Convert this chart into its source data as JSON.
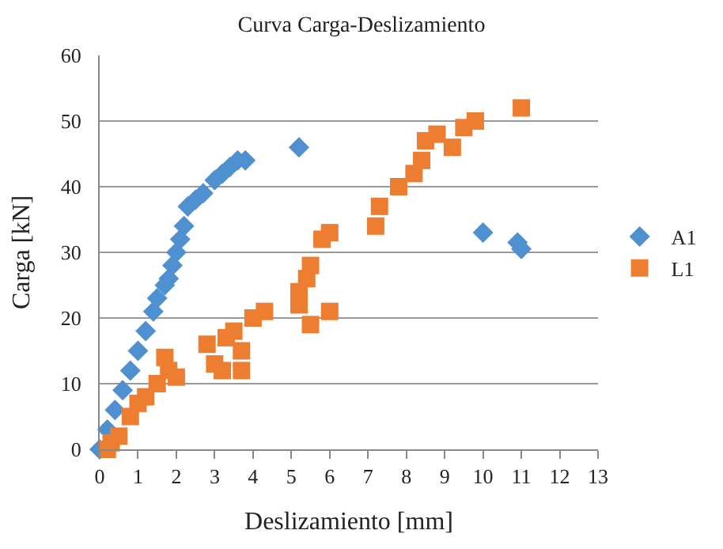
{
  "chart_data": {
    "type": "scatter",
    "title": "Curva Carga-Deslizamiento",
    "xlabel": "Deslizamiento [mm]",
    "ylabel": "Carga [kN]",
    "xlim": [
      0,
      13
    ],
    "xticks": [
      0,
      1,
      2,
      3,
      4,
      5,
      6,
      7,
      8,
      9,
      10,
      11,
      12,
      13
    ],
    "ylim": [
      0,
      60
    ],
    "yticks": [
      0,
      10,
      20,
      30,
      40,
      50,
      60
    ],
    "grid": "y",
    "legend": "right",
    "series": [
      {
        "name": "A1",
        "color": "#4f90d0",
        "marker": "diamond",
        "x": [
          0,
          0.2,
          0.4,
          0.6,
          0.8,
          1.0,
          1.2,
          1.4,
          1.5,
          1.7,
          1.8,
          1.9,
          2.0,
          2.1,
          2.2,
          2.3,
          2.5,
          2.7,
          3.0,
          3.2,
          3.4,
          3.6,
          3.8,
          5.2,
          10.0,
          10.9,
          11.0
        ],
        "values": [
          0,
          3,
          6,
          9,
          12,
          15,
          18,
          21,
          23,
          25,
          26,
          28,
          30,
          32,
          34,
          37,
          38,
          39,
          41,
          42,
          43,
          44,
          44,
          46,
          33,
          31.5,
          30.5
        ]
      },
      {
        "name": "L1",
        "color": "#ed7d31",
        "marker": "square",
        "x": [
          0.2,
          0.3,
          0.5,
          0.8,
          1.0,
          1.2,
          1.5,
          1.7,
          1.8,
          2.0,
          2.8,
          3.0,
          3.2,
          3.3,
          3.5,
          3.7,
          3.7,
          4.0,
          4.3,
          5.2,
          5.4,
          5.5,
          5.8,
          6.0,
          5.5,
          5.2,
          6.0,
          7.2,
          7.3,
          7.8,
          8.2,
          8.4,
          8.5,
          8.8,
          9.2,
          9.5,
          9.8,
          11.0
        ],
        "values": [
          0,
          1,
          2,
          5,
          7,
          8,
          10,
          14,
          12,
          11,
          16,
          13,
          12,
          17,
          18,
          12,
          15,
          20,
          21,
          24,
          26,
          28,
          32,
          33,
          19,
          22,
          21,
          34,
          37,
          40,
          42,
          44,
          47,
          48,
          46,
          49,
          50,
          52
        ]
      }
    ]
  }
}
